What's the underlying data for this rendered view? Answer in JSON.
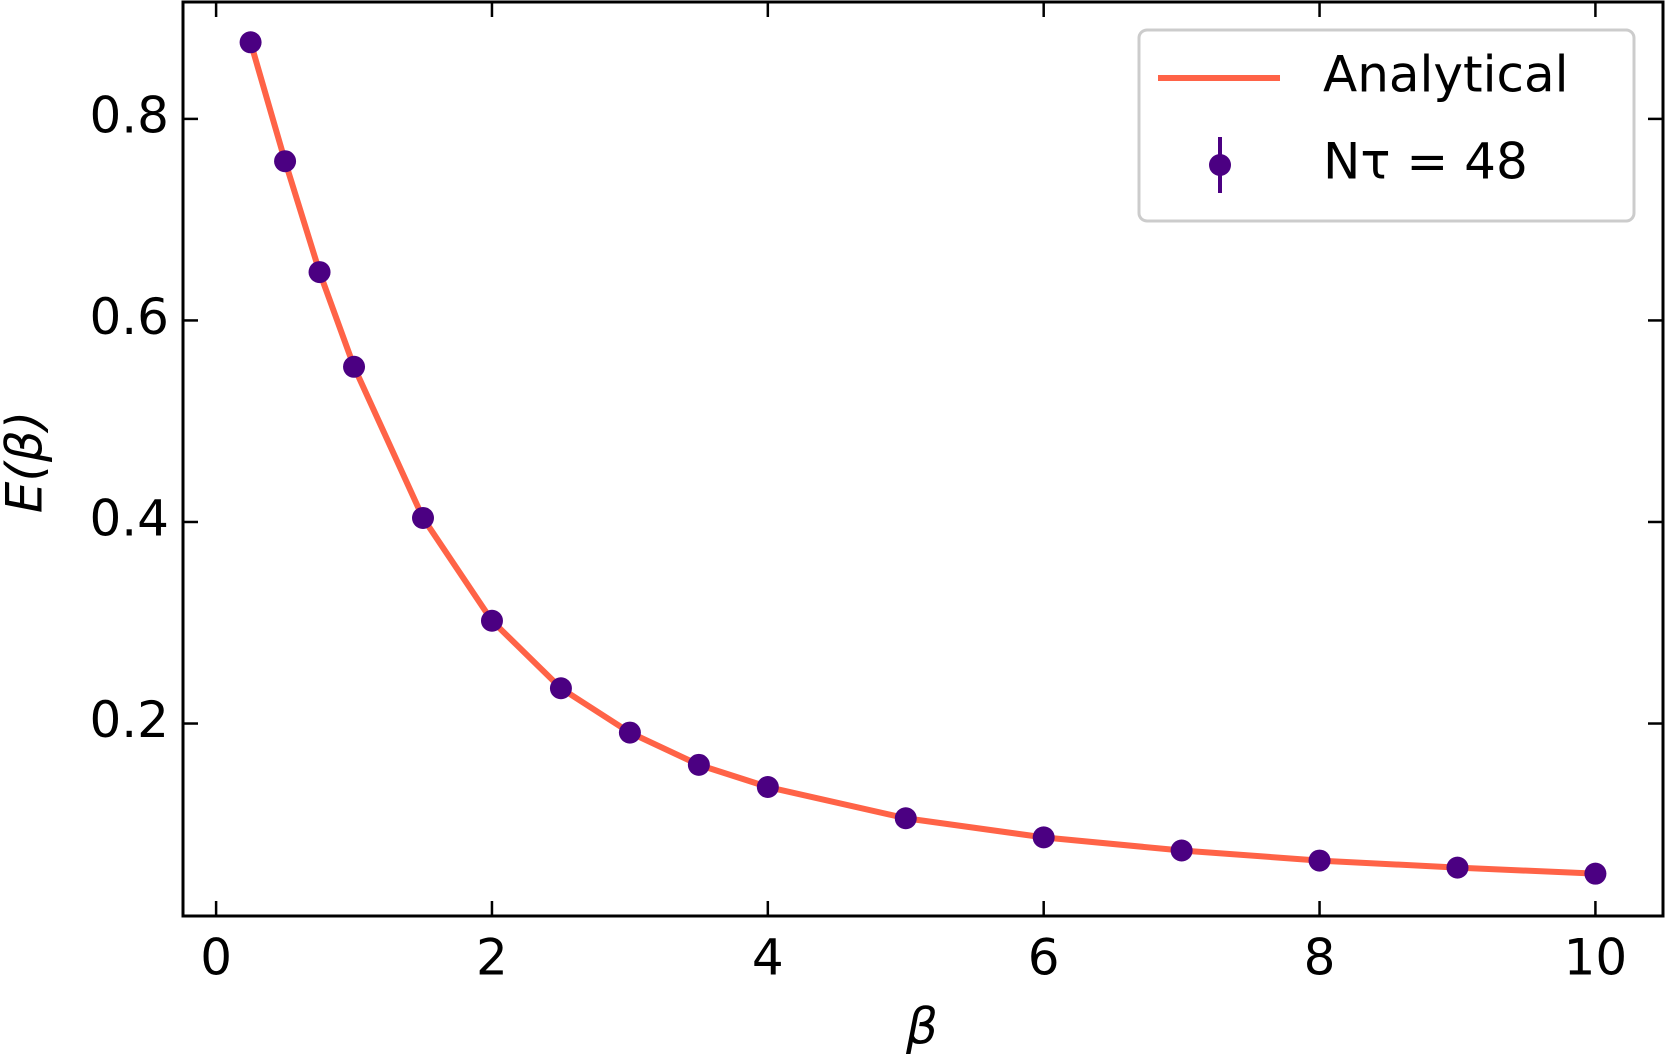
{
  "chart_data": {
    "type": "line",
    "x_label": "β",
    "y_label": "E(β)",
    "xlim": [
      -0.24,
      10.49
    ],
    "ylim": [
      0.009,
      0.916
    ],
    "xticks": [
      0,
      2,
      4,
      6,
      8,
      10
    ],
    "yticks": [
      0.2,
      0.4,
      0.6,
      0.8
    ],
    "legend": "upper right",
    "series": [
      {
        "name": "Analytical",
        "color": "#ff6347",
        "mode": "line",
        "x": [
          0.25,
          0.5,
          0.75,
          1,
          1.5,
          2,
          2.5,
          3,
          3.5,
          4,
          5,
          6,
          7,
          8,
          9,
          10
        ],
        "values": [
          0.876,
          0.758,
          0.648,
          0.554,
          0.404,
          0.302,
          0.235,
          0.191,
          0.159,
          0.137,
          0.106,
          0.087,
          0.074,
          0.064,
          0.057,
          0.051
        ]
      },
      {
        "name": "Nτ = 48",
        "color": "#4b0082",
        "mode": "markers",
        "x": [
          0.25,
          0.5,
          0.75,
          1,
          1.5,
          2,
          2.5,
          3,
          3.5,
          4,
          5,
          6,
          7,
          8,
          9,
          10
        ],
        "values": [
          0.876,
          0.758,
          0.648,
          0.554,
          0.404,
          0.302,
          0.235,
          0.191,
          0.159,
          0.137,
          0.106,
          0.087,
          0.074,
          0.064,
          0.057,
          0.051
        ]
      }
    ]
  }
}
